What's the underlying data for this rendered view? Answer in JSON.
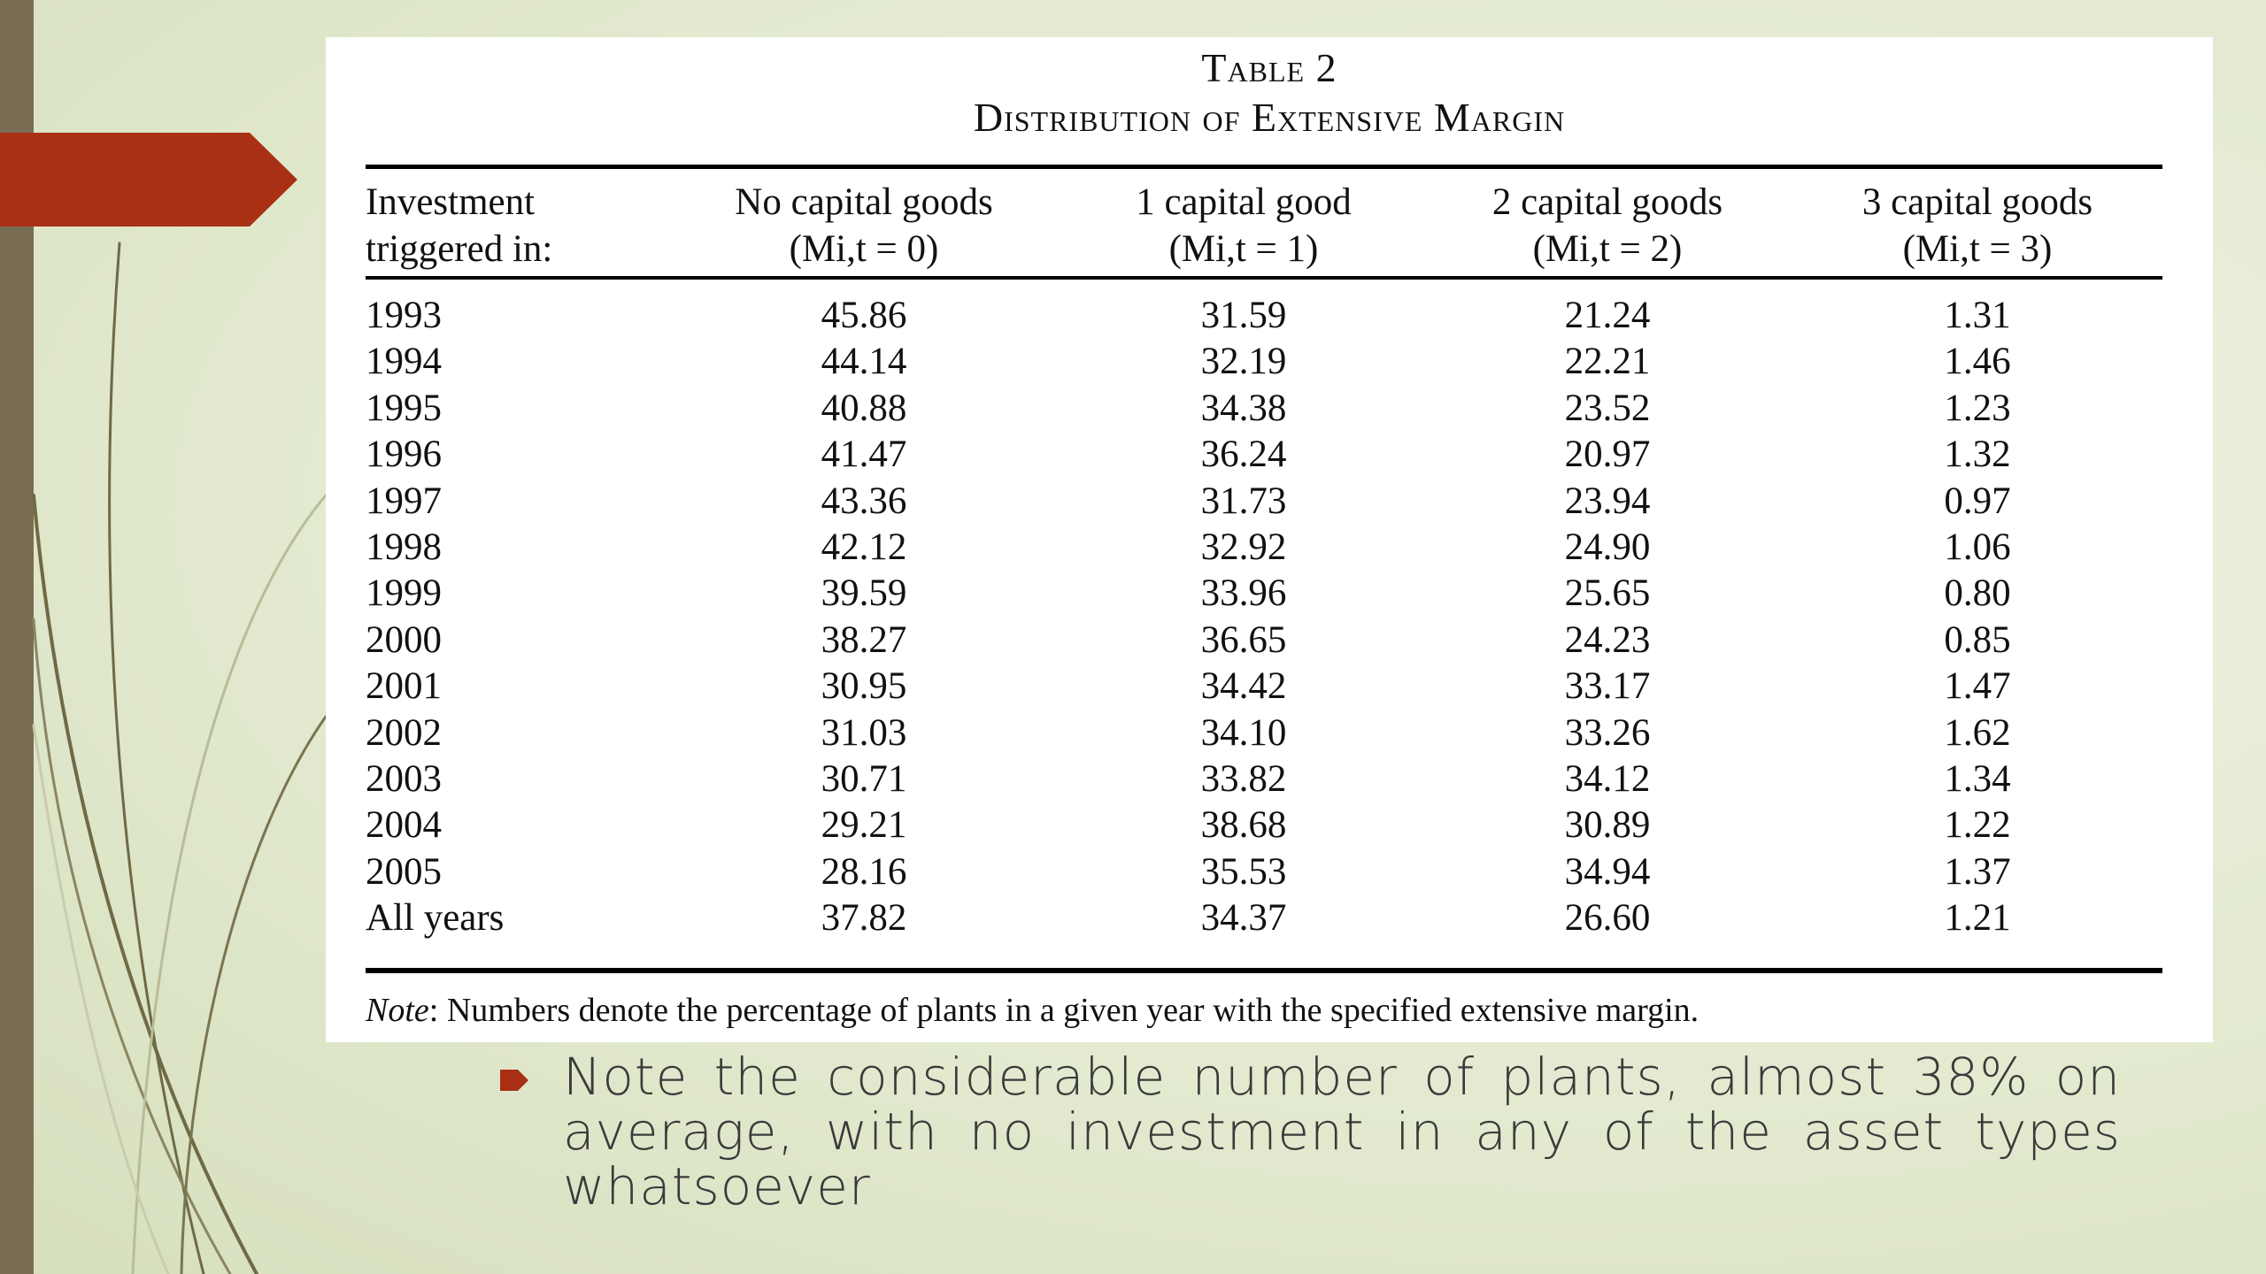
{
  "table": {
    "label": "Table 2",
    "title": "Distribution of Extensive Margin",
    "headers": [
      {
        "line1": "Investment",
        "line2": "triggered in:"
      },
      {
        "line1": "No capital goods",
        "line2": "(Mi,t = 0)"
      },
      {
        "line1": "1 capital good",
        "line2": "(Mi,t = 1)"
      },
      {
        "line1": "2 capital goods",
        "line2": "(Mi,t = 2)"
      },
      {
        "line1": "3 capital goods",
        "line2": "(Mi,t = 3)"
      }
    ],
    "rows": [
      [
        "1993",
        "45.86",
        "31.59",
        "21.24",
        "1.31"
      ],
      [
        "1994",
        "44.14",
        "32.19",
        "22.21",
        "1.46"
      ],
      [
        "1995",
        "40.88",
        "34.38",
        "23.52",
        "1.23"
      ],
      [
        "1996",
        "41.47",
        "36.24",
        "20.97",
        "1.32"
      ],
      [
        "1997",
        "43.36",
        "31.73",
        "23.94",
        "0.97"
      ],
      [
        "1998",
        "42.12",
        "32.92",
        "24.90",
        "1.06"
      ],
      [
        "1999",
        "39.59",
        "33.96",
        "25.65",
        "0.80"
      ],
      [
        "2000",
        "38.27",
        "36.65",
        "24.23",
        "0.85"
      ],
      [
        "2001",
        "30.95",
        "34.42",
        "33.17",
        "1.47"
      ],
      [
        "2002",
        "31.03",
        "34.10",
        "33.26",
        "1.62"
      ],
      [
        "2003",
        "30.71",
        "33.82",
        "34.12",
        "1.34"
      ],
      [
        "2004",
        "29.21",
        "38.68",
        "30.89",
        "1.22"
      ],
      [
        "2005",
        "28.16",
        "35.53",
        "34.94",
        "1.37"
      ],
      [
        "All years",
        "37.82",
        "34.37",
        "26.60",
        "1.21"
      ]
    ],
    "note_label": "Note",
    "note_text": ": Numbers denote the percentage of plants in a given year with the specified extensive margin."
  },
  "bullet": {
    "text": "Note the considerable number of plants, almost 38% on average, with no investment in any of the asset types whatsoever"
  },
  "colors": {
    "accent": "#a93014",
    "sidebar": "#7a6c52"
  }
}
